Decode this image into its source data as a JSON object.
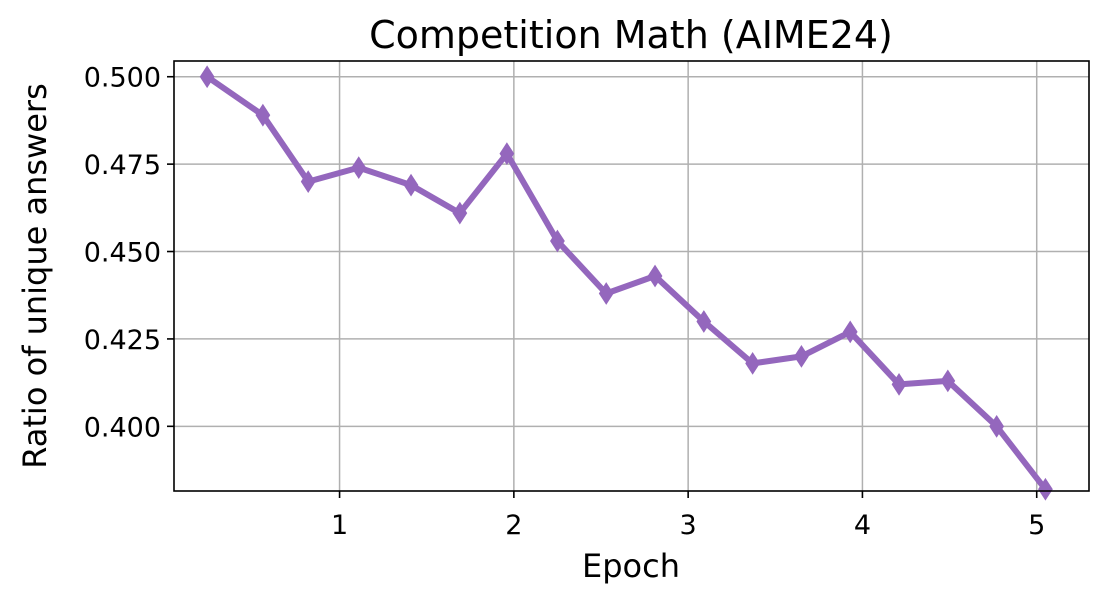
{
  "chart_data": {
    "type": "line",
    "title": "Competition Math (AIME24)",
    "xlabel": "Epoch",
    "ylabel": "Ratio of unique answers",
    "xlim": [
      0.05,
      5.3
    ],
    "ylim": [
      0.3815,
      0.5045
    ],
    "xticks": [
      1,
      2,
      3,
      4,
      5
    ],
    "yticks": [
      0.4,
      0.425,
      0.45,
      0.475,
      0.5
    ],
    "ytick_labels": [
      "0.400",
      "0.425",
      "0.450",
      "0.475",
      "0.500"
    ],
    "grid": true,
    "marker": "thin-diamond",
    "color": "#9467bd",
    "series": [
      {
        "x": [
          0.24,
          0.56,
          0.82,
          1.11,
          1.41,
          1.69,
          1.96,
          2.25,
          2.53,
          2.81,
          3.09,
          3.37,
          3.65,
          3.93,
          4.21,
          4.49,
          4.77,
          5.05
        ],
        "y": [
          0.5,
          0.489,
          0.47,
          0.474,
          0.469,
          0.461,
          0.478,
          0.453,
          0.438,
          0.443,
          0.43,
          0.418,
          0.42,
          0.427,
          0.412,
          0.413,
          0.4,
          0.382
        ]
      }
    ]
  }
}
